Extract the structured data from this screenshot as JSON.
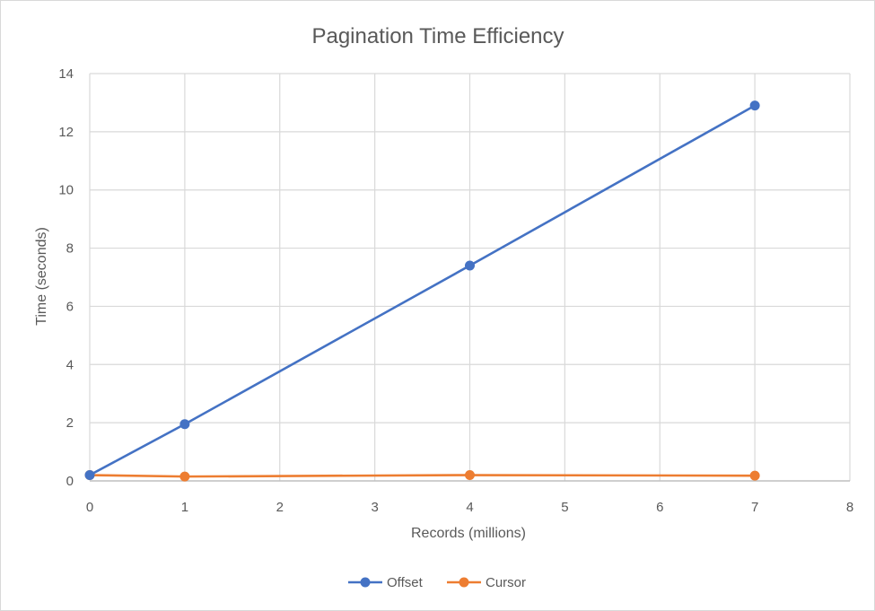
{
  "chart_data": {
    "type": "scatter",
    "title": "Pagination Time Efficiency",
    "xlabel": "Records (millions)",
    "ylabel": "Time (seconds)",
    "xlim": [
      0,
      8
    ],
    "ylim": [
      0,
      14
    ],
    "xticks": [
      "0",
      "1",
      "2",
      "3",
      "4",
      "5",
      "6",
      "7",
      "8"
    ],
    "yticks": [
      "0",
      "2",
      "4",
      "6",
      "8",
      "10",
      "12",
      "14"
    ],
    "grid": true,
    "legend_position": "bottom",
    "series": [
      {
        "name": "Offset",
        "color": "#4472c4",
        "points": [
          {
            "x": 0,
            "y": 0.2
          },
          {
            "x": 1,
            "y": 1.95
          },
          {
            "x": 4,
            "y": 7.4
          },
          {
            "x": 7,
            "y": 12.9
          }
        ]
      },
      {
        "name": "Cursor",
        "color": "#ed7d31",
        "points": [
          {
            "x": 0,
            "y": 0.2
          },
          {
            "x": 1,
            "y": 0.15
          },
          {
            "x": 4,
            "y": 0.2
          },
          {
            "x": 7,
            "y": 0.18
          }
        ]
      }
    ]
  }
}
